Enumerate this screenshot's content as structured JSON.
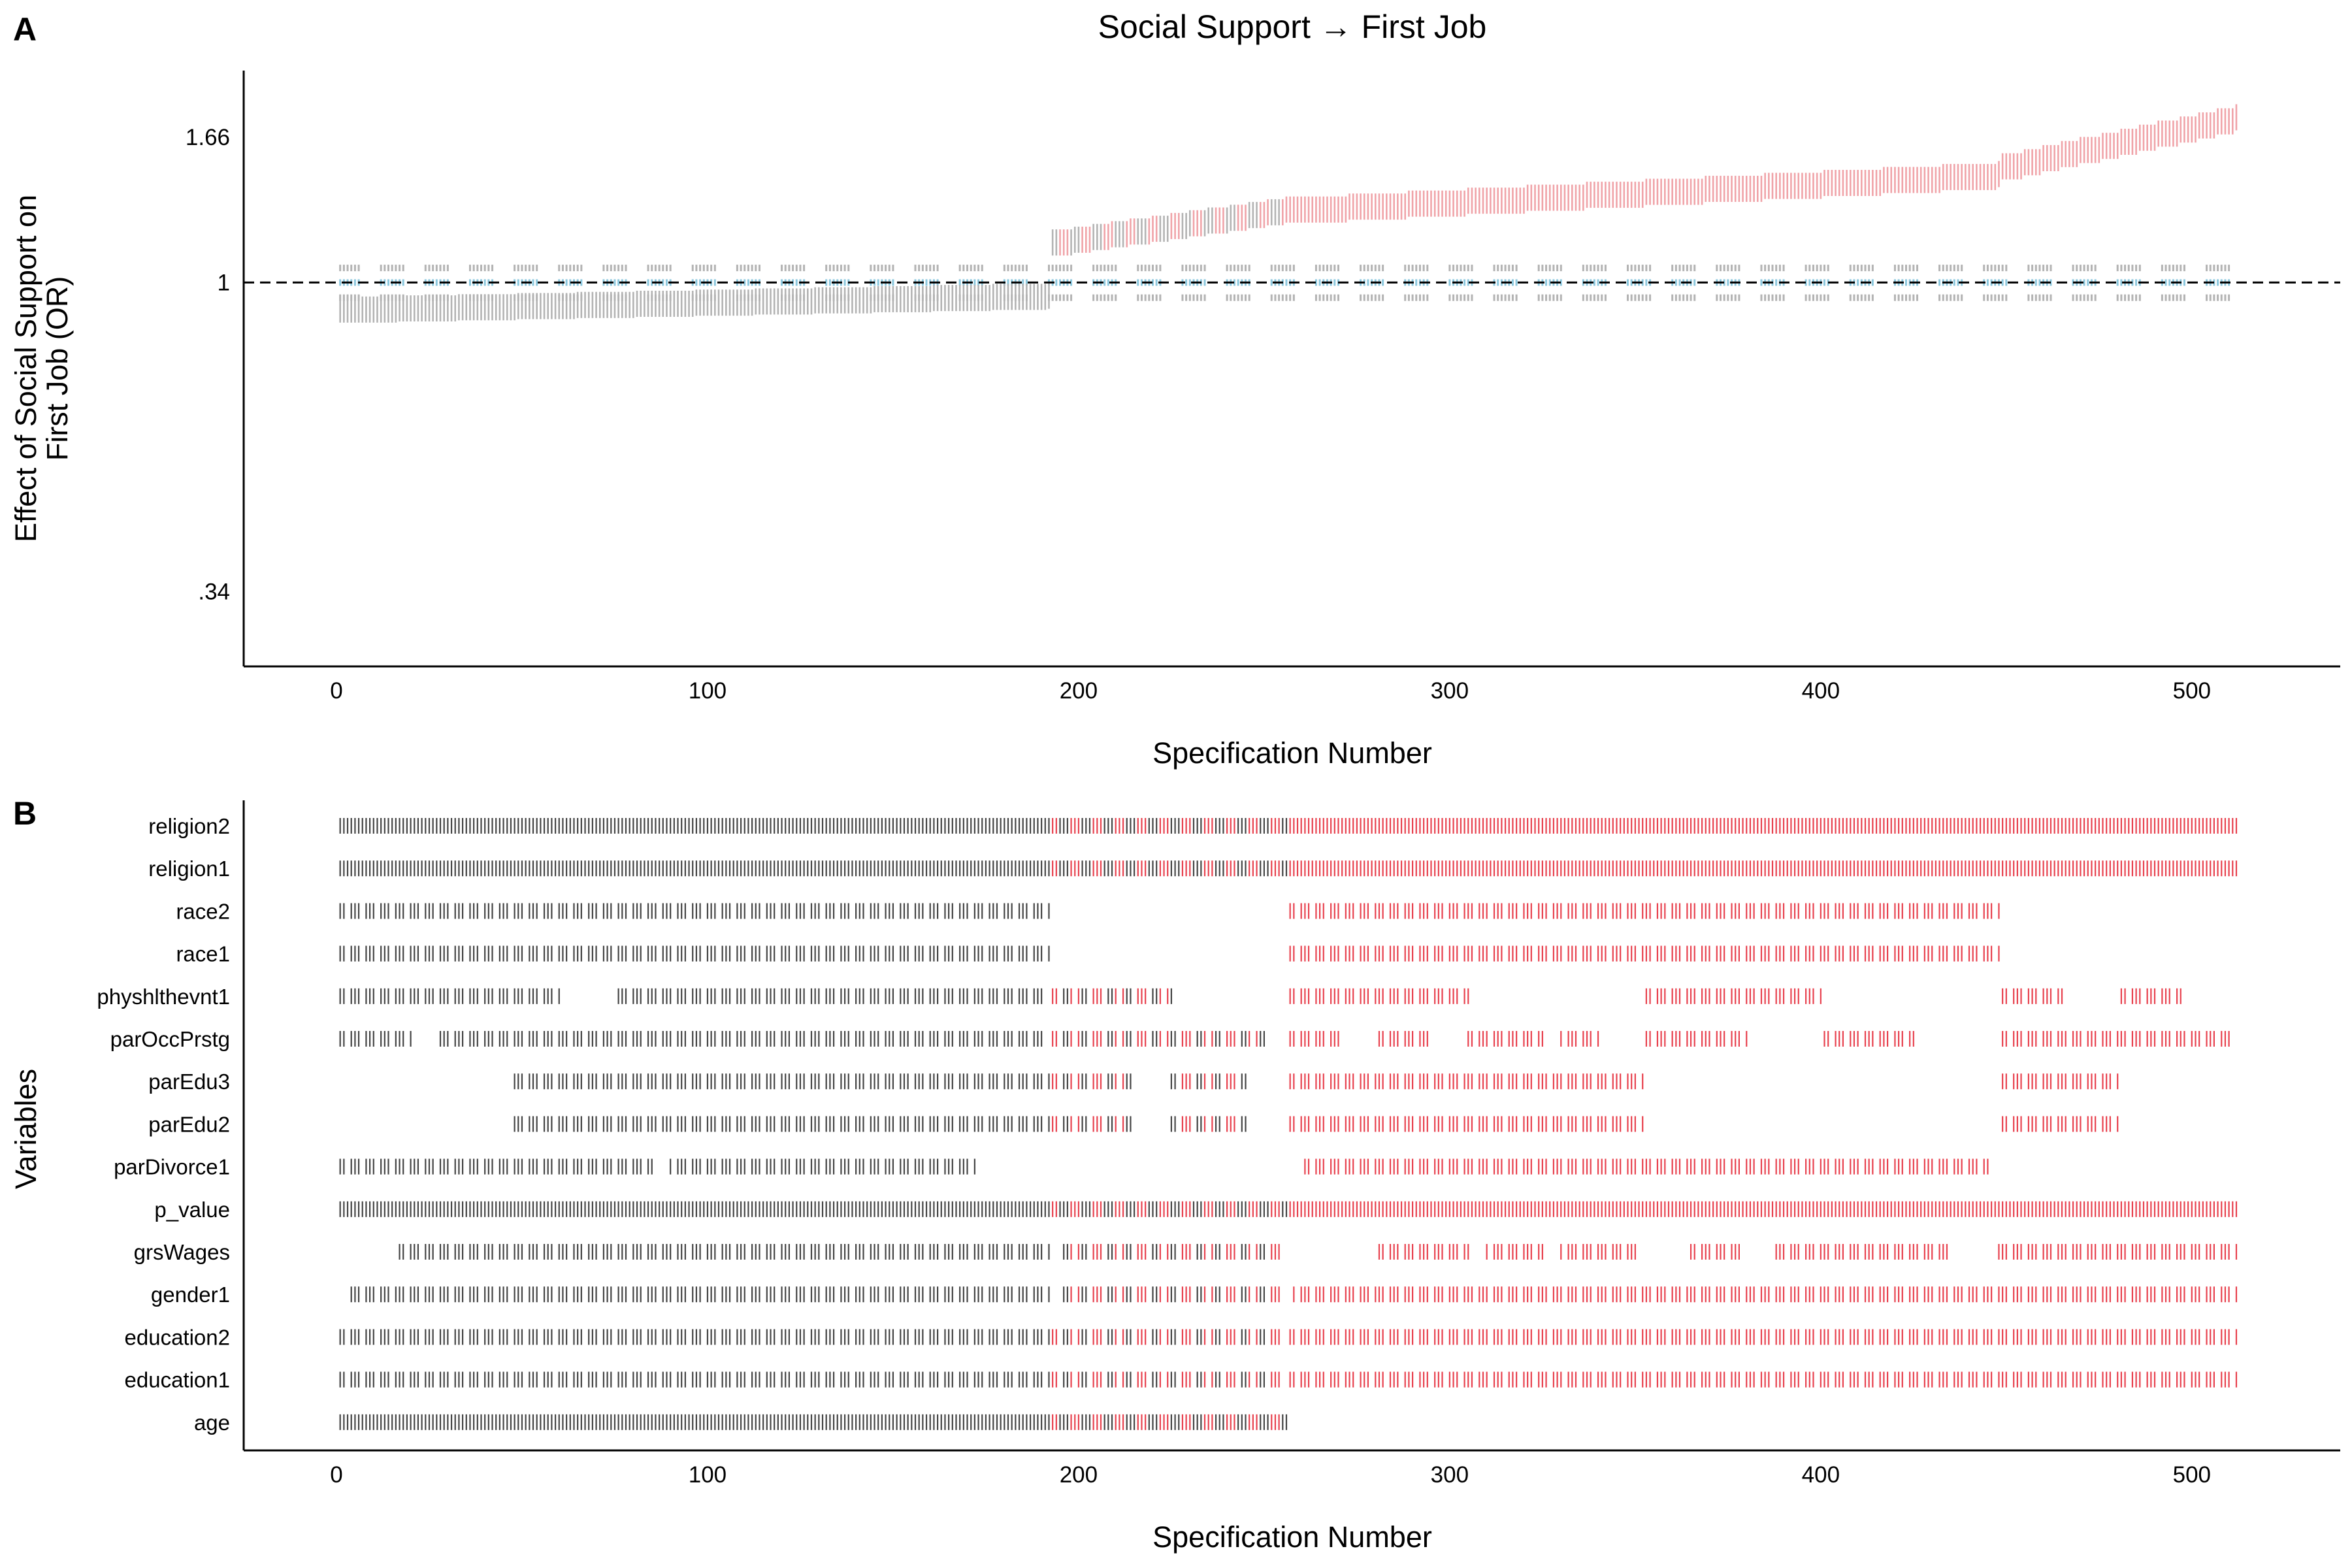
{
  "panel_a_letter": "A",
  "panel_b_letter": "B",
  "chart_data": [
    {
      "type": "scatter",
      "title": "Social Support → First Job",
      "xlabel": "Specification Number",
      "ylabel": "Effect of Social Support on First Job (OR)",
      "xlim": [
        -25,
        540
      ],
      "ylim": [
        0.262,
        2.095
      ],
      "yscale": "log",
      "xticks": [
        0,
        100,
        200,
        300,
        400,
        500
      ],
      "yticks": [
        0.34,
        1,
        1.66
      ],
      "ytick_labels": [
        ".34",
        "1",
        "1.66"
      ],
      "reference_line": 1,
      "n_specifications": 512,
      "colors": {
        "significant": "#f0a3a8",
        "nonsignificant": "#b3b3b3",
        "estimate_null": "#8cc8de"
      },
      "estimate_segments": [
        {
          "x_start": 1,
          "x_end": 192,
          "or_start": 0.91,
          "or_end": 0.955,
          "status": "nonsignificant"
        },
        {
          "x_start": 193,
          "x_end": 256,
          "or_start": 1.15,
          "or_end": 1.29,
          "status": "mixed"
        },
        {
          "x_start": 257,
          "x_end": 448,
          "or_start": 1.29,
          "or_end": 1.46,
          "status": "significant"
        },
        {
          "x_start": 449,
          "x_end": 512,
          "or_start": 1.5,
          "or_end": 1.78,
          "status": "significant"
        }
      ],
      "null_band": {
        "x_start": 1,
        "x_end": 512,
        "or_low": 0.955,
        "or_high": 1.045
      }
    },
    {
      "type": "heatmap",
      "xlabel": "Specification Number",
      "ylabel": "Variables",
      "xlim": [
        -25,
        540
      ],
      "xticks": [
        0,
        100,
        200,
        300,
        400,
        500
      ],
      "variables": [
        "religion2",
        "religion1",
        "race2",
        "race1",
        "physhlthevnt1",
        "parOccPrstg",
        "parEdu3",
        "parEdu2",
        "parDivorce1",
        "p_value",
        "grsWages",
        "gender1",
        "education2",
        "education1",
        "age"
      ],
      "included_ranges": {
        "religion2": [
          [
            1,
            512
          ]
        ],
        "religion1": [
          [
            1,
            512
          ]
        ],
        "race2": [
          [
            1,
            192
          ],
          [
            257,
            448
          ]
        ],
        "race1": [
          [
            1,
            192
          ],
          [
            257,
            448
          ]
        ],
        "physhlthevnt1": [
          [
            1,
            60
          ],
          [
            75,
            190
          ],
          [
            193,
            225
          ],
          [
            257,
            305
          ],
          [
            353,
            400
          ],
          [
            449,
            465
          ],
          [
            481,
            497
          ]
        ],
        "parOccPrstg": [
          [
            1,
            20
          ],
          [
            27,
            190
          ],
          [
            193,
            250
          ],
          [
            257,
            270
          ],
          [
            281,
            295
          ],
          [
            305,
            325
          ],
          [
            330,
            340
          ],
          [
            353,
            380
          ],
          [
            401,
            425
          ],
          [
            449,
            510
          ]
        ],
        "parEdu3": [
          [
            47,
            192
          ],
          [
            193,
            215
          ],
          [
            225,
            245
          ],
          [
            257,
            352
          ],
          [
            449,
            480
          ]
        ],
        "parEdu2": [
          [
            47,
            192
          ],
          [
            193,
            215
          ],
          [
            225,
            245
          ],
          [
            257,
            352
          ],
          [
            449,
            480
          ]
        ],
        "parDivorce1": [
          [
            1,
            85
          ],
          [
            90,
            172
          ],
          [
            261,
            445
          ]
        ],
        "p_value": [
          [
            1,
            512
          ]
        ],
        "grsWages": [
          [
            17,
            192
          ],
          [
            195,
            255
          ],
          [
            281,
            305
          ],
          [
            310,
            325
          ],
          [
            330,
            350
          ],
          [
            365,
            378
          ],
          [
            388,
            435
          ],
          [
            448,
            512
          ]
        ],
        "gender1": [
          [
            3,
            192
          ],
          [
            195,
            255
          ],
          [
            258,
            512
          ]
        ],
        "education2": [
          [
            1,
            192
          ],
          [
            193,
            255
          ],
          [
            257,
            512
          ]
        ],
        "education1": [
          [
            1,
            192
          ],
          [
            193,
            255
          ],
          [
            257,
            512
          ]
        ],
        "age": [
          [
            1,
            256
          ]
        ]
      },
      "colors": {
        "nonsignificant": "#444444",
        "significant": "#e8414e"
      }
    }
  ]
}
